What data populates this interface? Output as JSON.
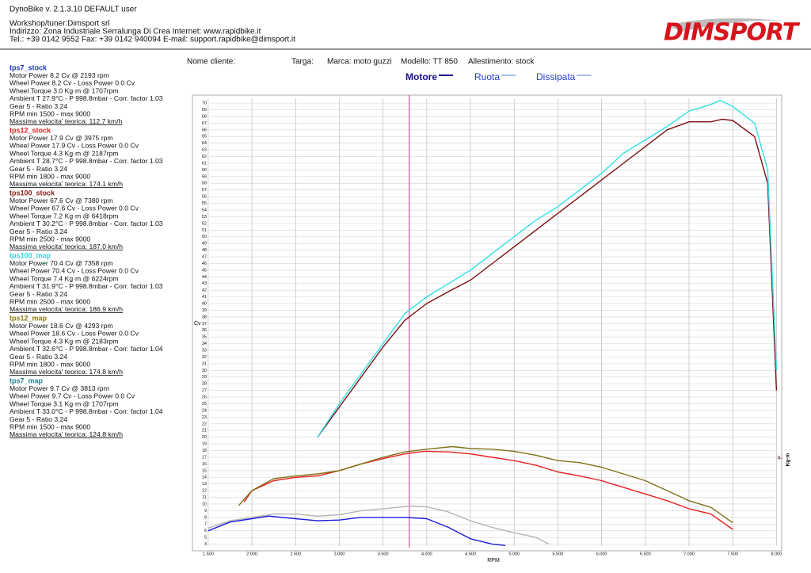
{
  "header": {
    "app": "DynoBike v. 2.1.3.10   DEFAULT user",
    "lines": [
      "Workshop/tuner:Dimsport srl",
      "Indirizzo: Zona Industriale Serralunga Di Crea Internet: www.rapidbike.it",
      "Tel.: +39 0142 9552 Fax: +39 0142 940094 E-mail: support.rapidbike@dimsport.it"
    ],
    "logo": "DIMSPORT"
  },
  "info": [
    "Nome cliente:",
    "Targa:",
    "Marca: moto guzzi",
    "Modello: TT 850",
    "Allestimento: stock"
  ],
  "legend": {
    "items": [
      {
        "label": "Motore",
        "color": "#1a0f8c",
        "line": "#1a0f8c"
      },
      {
        "label": "Ruota",
        "color": "#2a3ee0",
        "line": "#4f7ce8"
      },
      {
        "label": "Dissipata",
        "color": "#2a3ee0",
        "line": "#4f7ce8"
      }
    ]
  },
  "chart_data": {
    "type": "line",
    "xlabel": "RPM",
    "ylabel": "Cv",
    "y2label": "Kg·m",
    "xlim": [
      1320,
      8060
    ],
    "ylim": [
      3,
      71.2
    ],
    "y2lim": [
      -1,
      3.92
    ],
    "y2ticks": [
      0
    ],
    "cursor_x": 3800,
    "cursor_color": "#d0308c",
    "grid": true,
    "xticks": [
      {
        "value": 1500,
        "label": "1.500"
      },
      {
        "value": 2000,
        "label": "2.000"
      },
      {
        "value": 2500,
        "label": "2.500"
      },
      {
        "value": 3000,
        "label": "3.000"
      },
      {
        "value": 3500,
        "label": "3.500"
      },
      {
        "value": 4000,
        "label": "4.000"
      },
      {
        "value": 4500,
        "label": "4.500"
      },
      {
        "value": 5000,
        "label": "5.000"
      },
      {
        "value": 5500,
        "label": "5.500"
      },
      {
        "value": 6000,
        "label": "6.000"
      },
      {
        "value": 6500,
        "label": "6.500"
      },
      {
        "value": 7000,
        "label": "7.000"
      },
      {
        "value": 7500,
        "label": "7.500"
      },
      {
        "value": 8000,
        "label": "8.000"
      }
    ],
    "yticks": [
      4,
      5,
      6,
      7,
      8,
      9,
      10,
      11,
      12,
      13,
      14,
      15,
      16,
      17,
      18,
      19,
      20,
      21,
      22,
      23,
      24,
      25,
      26,
      27,
      28,
      29,
      30,
      31,
      32,
      33,
      34,
      35,
      36,
      37,
      38,
      39,
      40,
      41,
      42,
      43,
      44,
      45,
      46,
      47,
      48,
      49,
      50,
      51,
      52,
      53,
      54,
      55,
      56,
      57,
      58,
      59,
      60,
      61,
      62,
      63,
      64,
      65,
      66,
      67,
      68,
      69,
      70
    ],
    "series": [
      {
        "name": "tps7_stock",
        "name_color": "#1830c8",
        "color": "#1a1ae0",
        "x": [
          1500,
          1750,
          2000,
          2193,
          2500,
          2750,
          3000,
          3250,
          3500,
          3750,
          4000,
          4250,
          4500,
          4750,
          4900
        ],
        "values": [
          6,
          7.3,
          7.8,
          8.2,
          7.8,
          7.5,
          7.6,
          8,
          8,
          8,
          7.8,
          6.5,
          4.8,
          4,
          3.8
        ],
        "info": [
          "Motor Power 8.2 Cv  @ 2193 rpm",
          "Wheel Power 8.2 Cv  - Loss Power 0.0 Cv",
          "Wheel Torque 3.0 Kg·m  @ 1707rpm",
          "Ambient T 27.9°C - P 998.8mbar - Corr. factor 1.03",
          "Gear 5 - Ratio 3.24",
          "RPM min 1500 - max 9000",
          "Massima velocita' teorica: 112.7 km/h"
        ]
      },
      {
        "name": "tps12_stock",
        "name_color": "#e02020",
        "color": "#e82020",
        "x": [
          1910,
          2000,
          2250,
          2500,
          2750,
          3000,
          3250,
          3500,
          3750,
          3975,
          4250,
          4500,
          4750,
          5000,
          5250,
          5500,
          5750,
          6000,
          6250,
          6500,
          6750,
          7000,
          7250,
          7500
        ],
        "values": [
          10.3,
          12,
          13.5,
          14,
          14.2,
          15,
          16,
          16.8,
          17.5,
          17.9,
          17.8,
          17.5,
          17,
          16.5,
          15.8,
          14.8,
          14.2,
          13.5,
          12.5,
          11.5,
          10.5,
          9.3,
          8.5,
          6.2
        ],
        "info": [
          "Motor Power 17.9 Cv  @ 3975 rpm",
          "Wheel Power 17.9 Cv  - Loss Power 0.0 Cv",
          "Wheel Torque 4.3 Kg·m  @ 2187rpm",
          "Ambient T 28.7°C - P 998.8mbar - Corr. factor 1.03",
          "Gear 5 - Ratio 3.24",
          "RPM min 1800 - max 9000",
          "Massima velocita' teorica: 174.1 km/h"
        ]
      },
      {
        "name": "tps100_stock",
        "name_color": "#8b1a1a",
        "color": "#7a1010",
        "x": [
          2750,
          3000,
          3250,
          3500,
          3750,
          4000,
          4250,
          4500,
          4750,
          5000,
          5250,
          5500,
          5750,
          6000,
          6250,
          6500,
          6750,
          7000,
          7250,
          7380,
          7500,
          7750,
          7900,
          8000
        ],
        "values": [
          20,
          24.5,
          29,
          33.5,
          37.5,
          40,
          41.8,
          43.5,
          46,
          48.5,
          51,
          53.5,
          56,
          58.5,
          61,
          63.5,
          66,
          67.2,
          67.2,
          67.6,
          67.4,
          65,
          58,
          27
        ],
        "info": [
          "Motor Power 67.6 Cv  @ 7380 rpm",
          "Wheel Power 67.6 Cv  - Loss Power 0.0 Cv",
          "Wheel Torque 7.2 Kg·m  @ 6418rpm",
          "Ambient T 30.2°C - P 998.8mbar - Corr. factor 1.03",
          "Gear 5 - Ratio 3.24",
          "RPM min 2500 - max 9000",
          "Massima velocita' teorica: 187.0 km/h"
        ]
      },
      {
        "name": "tps100_map",
        "name_color": "#30d8e0",
        "color": "#30e0e8",
        "x": [
          2750,
          3000,
          3250,
          3500,
          3750,
          4000,
          4250,
          4500,
          4750,
          5000,
          5250,
          5500,
          5750,
          6000,
          6250,
          6500,
          6750,
          7000,
          7250,
          7358,
          7500,
          7750,
          7900,
          8000
        ],
        "values": [
          20,
          25,
          29.5,
          34,
          38.5,
          41,
          43,
          45,
          47.5,
          50,
          52.5,
          54.5,
          57,
          59.5,
          62.5,
          64.5,
          66.5,
          68.8,
          69.8,
          70.4,
          69.5,
          67,
          60,
          30
        ],
        "info": [
          "Motor Power 70.4 Cv  @ 7358 rpm",
          "Wheel Power 70.4 Cv  - Loss Power 0.0 Cv",
          "Wheel Torque 7.4 Kg·m  @ 6224rpm",
          "Ambient T 31.9°C - P 998.8mbar - Corr. factor 1.03",
          "Gear 5 - Ratio 3.24",
          "RPM min 2500 - max 9000",
          "Massima velocita' teorica: 186.9 km/h"
        ]
      },
      {
        "name": "tps12_map",
        "name_color": "#8a7a10",
        "color": "#807018",
        "x": [
          1850,
          2000,
          2250,
          2500,
          2750,
          3000,
          3250,
          3500,
          3750,
          4000,
          4293,
          4500,
          4750,
          5000,
          5250,
          5500,
          5750,
          6000,
          6250,
          6500,
          6750,
          7000,
          7250,
          7500
        ],
        "values": [
          9.8,
          12,
          13.8,
          14.2,
          14.5,
          15,
          16,
          17,
          17.8,
          18.2,
          18.6,
          18.3,
          18.2,
          17.9,
          17.3,
          16.5,
          16.2,
          15.5,
          14.5,
          13.5,
          12,
          10.5,
          9.5,
          7.2
        ],
        "info": [
          "Motor Power 18.6 Cv  @ 4293 rpm",
          "Wheel Power 18.6 Cv  - Loss Power 0.0 Cv",
          "Wheel Torque 4.3 Kg·m  @ 2183rpm",
          "Ambient T 32.6°C - P 998.8mbar - Corr. factor 1.04",
          "Gear 5 - Ratio 3.24",
          "RPM min 1800 - max 9000",
          "Massima velocita' teorica: 174.8 km/h"
        ]
      },
      {
        "name": "tps7_map",
        "name_color": "#208890",
        "color": "#b4b4b4",
        "x": [
          1500,
          1750,
          2000,
          2250,
          2500,
          2750,
          3000,
          3250,
          3500,
          3813,
          4000,
          4250,
          4500,
          4750,
          5000,
          5250,
          5400
        ],
        "values": [
          6.4,
          7.5,
          8,
          8.5,
          8.5,
          8.2,
          8.4,
          9,
          9.3,
          9.7,
          9.6,
          8.8,
          7.5,
          6.5,
          5.7,
          5,
          4
        ],
        "info": [
          "Motor Power 9.7 Cv  @ 3813 rpm",
          "Wheel Power 9.7 Cv  - Loss Power 0.0 Cv",
          "Wheel Torque 3.1 Kg·m  @ 1707rpm",
          "Ambient T 33.0°C - P 998.8mbar - Corr. factor 1.04",
          "Gear 5 - Ratio 3.24",
          "RPM min 1500 - max 9000",
          "Massima velocita' teorica: 124.8 km/h"
        ]
      }
    ]
  }
}
